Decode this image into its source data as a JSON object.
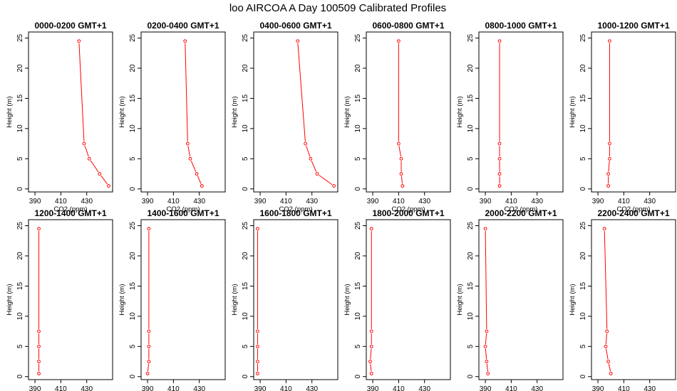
{
  "title": "loo AIRCOA A  Day 100509  Calibrated Profiles",
  "chart_data": {
    "type": "line",
    "title": "loo AIRCOA A  Day 100509  Calibrated Profiles",
    "xlabel": "CO2 (ppm)",
    "ylabel": "Height (m)",
    "xlim": [
      385,
      450
    ],
    "ylim": [
      -0.5,
      26
    ],
    "xticks": [
      390,
      410,
      430
    ],
    "yticks": [
      0,
      5,
      10,
      15,
      20,
      25
    ],
    "series_color": "#ff0000",
    "grid": false,
    "legend": "none",
    "panels": [
      {
        "title": "0000-0200 GMT+1",
        "points": [
          {
            "co2": 447,
            "height": 0.5
          },
          {
            "co2": 440,
            "height": 2.5
          },
          {
            "co2": 432,
            "height": 5
          },
          {
            "co2": 428,
            "height": 7.5
          },
          {
            "co2": 424,
            "height": 24.5
          }
        ]
      },
      {
        "title": "0200-0400 GMT+1",
        "points": [
          {
            "co2": 432,
            "height": 0.5
          },
          {
            "co2": 428,
            "height": 2.5
          },
          {
            "co2": 423,
            "height": 5
          },
          {
            "co2": 421,
            "height": 7.5
          },
          {
            "co2": 419,
            "height": 24.5
          }
        ]
      },
      {
        "title": "0400-0600 GMT+1",
        "points": [
          {
            "co2": 447,
            "height": 0.5
          },
          {
            "co2": 434,
            "height": 2.5
          },
          {
            "co2": 429,
            "height": 5
          },
          {
            "co2": 425,
            "height": 7.5
          },
          {
            "co2": 419,
            "height": 24.5
          }
        ]
      },
      {
        "title": "0600-0800 GMT+1",
        "points": [
          {
            "co2": 413,
            "height": 0.5
          },
          {
            "co2": 412,
            "height": 2.5
          },
          {
            "co2": 412,
            "height": 5
          },
          {
            "co2": 410,
            "height": 7.5
          },
          {
            "co2": 410,
            "height": 24.5
          }
        ]
      },
      {
        "title": "0800-1000 GMT+1",
        "points": [
          {
            "co2": 401,
            "height": 0.5
          },
          {
            "co2": 401,
            "height": 2.5
          },
          {
            "co2": 401,
            "height": 5
          },
          {
            "co2": 401,
            "height": 7.5
          },
          {
            "co2": 401,
            "height": 24.5
          }
        ]
      },
      {
        "title": "1000-1200 GMT+1",
        "points": [
          {
            "co2": 398,
            "height": 0.5
          },
          {
            "co2": 398,
            "height": 2.5
          },
          {
            "co2": 399,
            "height": 5
          },
          {
            "co2": 399,
            "height": 7.5
          },
          {
            "co2": 399,
            "height": 24.5
          }
        ]
      },
      {
        "title": "1200-1400 GMT+1",
        "points": [
          {
            "co2": 393,
            "height": 0.5
          },
          {
            "co2": 393,
            "height": 2.5
          },
          {
            "co2": 393,
            "height": 5
          },
          {
            "co2": 393,
            "height": 7.5
          },
          {
            "co2": 393,
            "height": 24.5
          }
        ]
      },
      {
        "title": "1400-1600 GMT+1",
        "points": [
          {
            "co2": 390,
            "height": 0.5
          },
          {
            "co2": 391,
            "height": 2.5
          },
          {
            "co2": 391,
            "height": 5
          },
          {
            "co2": 391,
            "height": 7.5
          },
          {
            "co2": 391,
            "height": 24.5
          }
        ]
      },
      {
        "title": "1600-1800 GMT+1",
        "points": [
          {
            "co2": 388,
            "height": 0.5
          },
          {
            "co2": 388,
            "height": 2.5
          },
          {
            "co2": 388,
            "height": 5
          },
          {
            "co2": 388,
            "height": 7.5
          },
          {
            "co2": 388,
            "height": 24.5
          }
        ]
      },
      {
        "title": "1800-2000 GMT+1",
        "points": [
          {
            "co2": 389,
            "height": 0.5
          },
          {
            "co2": 388,
            "height": 2.5
          },
          {
            "co2": 389,
            "height": 5
          },
          {
            "co2": 389,
            "height": 7.5
          },
          {
            "co2": 389,
            "height": 24.5
          }
        ]
      },
      {
        "title": "2000-2200 GMT+1",
        "points": [
          {
            "co2": 392,
            "height": 0.5
          },
          {
            "co2": 391,
            "height": 2.5
          },
          {
            "co2": 390,
            "height": 5
          },
          {
            "co2": 391,
            "height": 7.5
          },
          {
            "co2": 390,
            "height": 24.5
          }
        ]
      },
      {
        "title": "2200-2400 GMT+1",
        "points": [
          {
            "co2": 400,
            "height": 0.5
          },
          {
            "co2": 398,
            "height": 2.5
          },
          {
            "co2": 396,
            "height": 5
          },
          {
            "co2": 397,
            "height": 7.5
          },
          {
            "co2": 395,
            "height": 24.5
          }
        ]
      }
    ]
  }
}
